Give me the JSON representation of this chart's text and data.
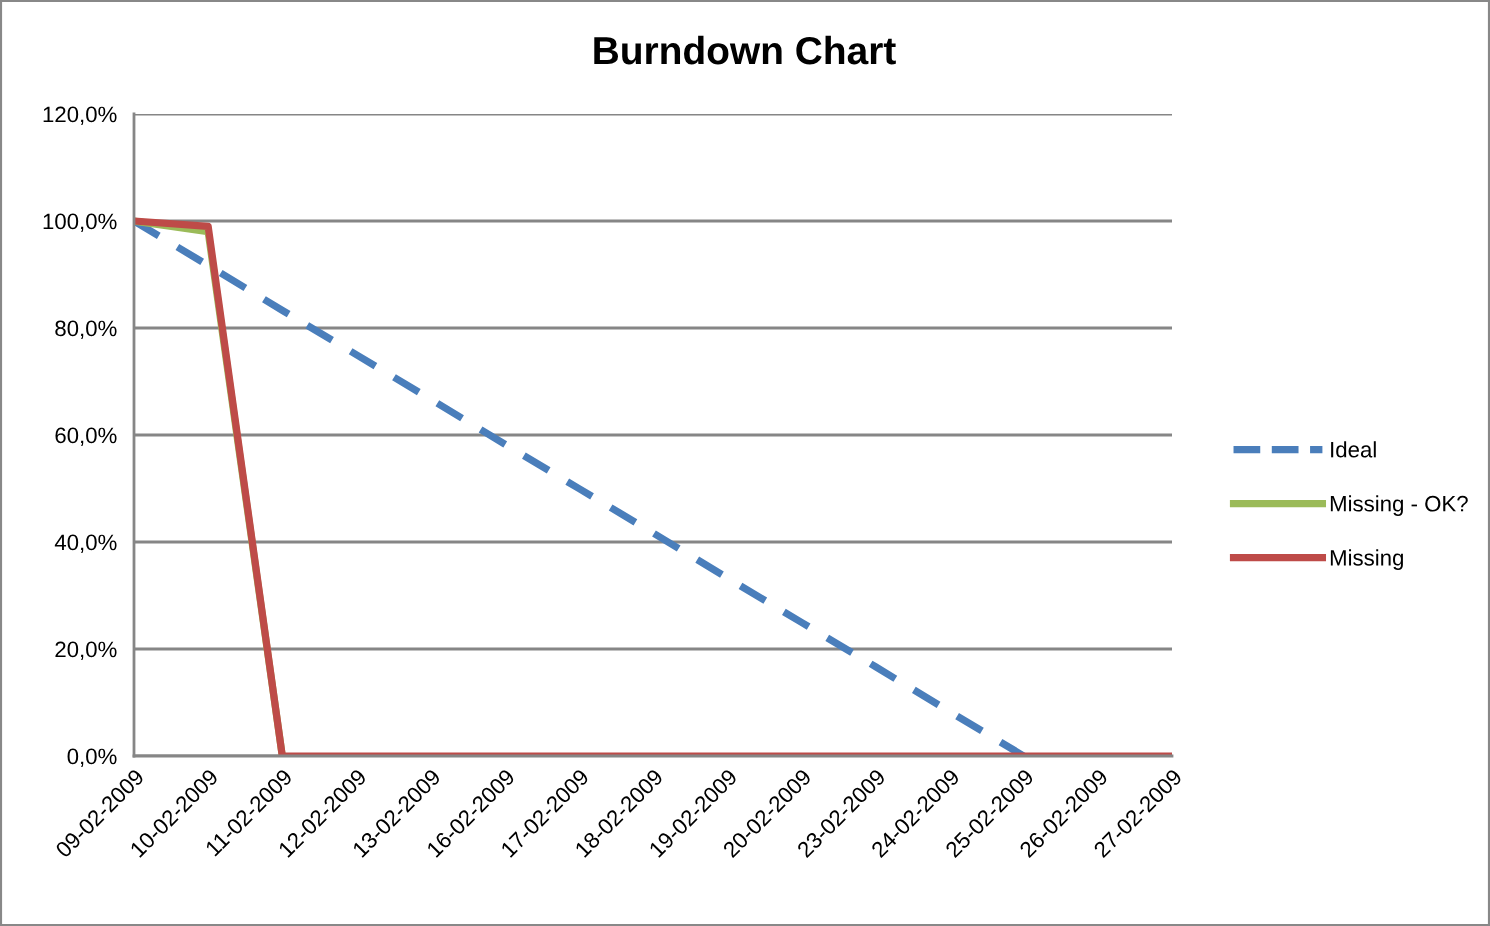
{
  "chart_data": {
    "type": "line",
    "title": "Burndown Chart",
    "categories": [
      "09-02-2009",
      "10-02-2009",
      "11-02-2009",
      "12-02-2009",
      "13-02-2009",
      "16-02-2009",
      "17-02-2009",
      "18-02-2009",
      "19-02-2009",
      "20-02-2009",
      "23-02-2009",
      "24-02-2009",
      "25-02-2009",
      "26-02-2009",
      "27-02-2009"
    ],
    "series": [
      {
        "name": "Ideal",
        "color": "#4a7ebb",
        "line_style": "dashed",
        "values": [
          100,
          91.7,
          83.3,
          75,
          66.7,
          58.3,
          50,
          41.7,
          33.3,
          25,
          16.7,
          8.3,
          0,
          null,
          null
        ]
      },
      {
        "name": "Missing - OK?",
        "color": "#9bbb59",
        "line_style": "solid",
        "values": [
          100,
          98,
          0,
          null,
          null,
          null,
          null,
          null,
          null,
          null,
          null,
          null,
          null,
          null,
          null
        ]
      },
      {
        "name": "Missing",
        "color": "#be4b48",
        "line_style": "solid",
        "values": [
          100,
          99,
          0,
          0,
          0,
          0,
          0,
          0,
          0,
          0,
          0,
          0,
          0,
          0,
          0
        ]
      }
    ],
    "ylim": [
      0,
      120
    ],
    "yticks": [
      {
        "value": 0,
        "label": "0,0%"
      },
      {
        "value": 20,
        "label": "20,0%"
      },
      {
        "value": 40,
        "label": "40,0%"
      },
      {
        "value": 60,
        "label": "60,0%"
      },
      {
        "value": 80,
        "label": "80,0%"
      },
      {
        "value": 100,
        "label": "100,0%"
      },
      {
        "value": 120,
        "label": "120,0%"
      }
    ],
    "grid": "y",
    "legend": "right"
  }
}
